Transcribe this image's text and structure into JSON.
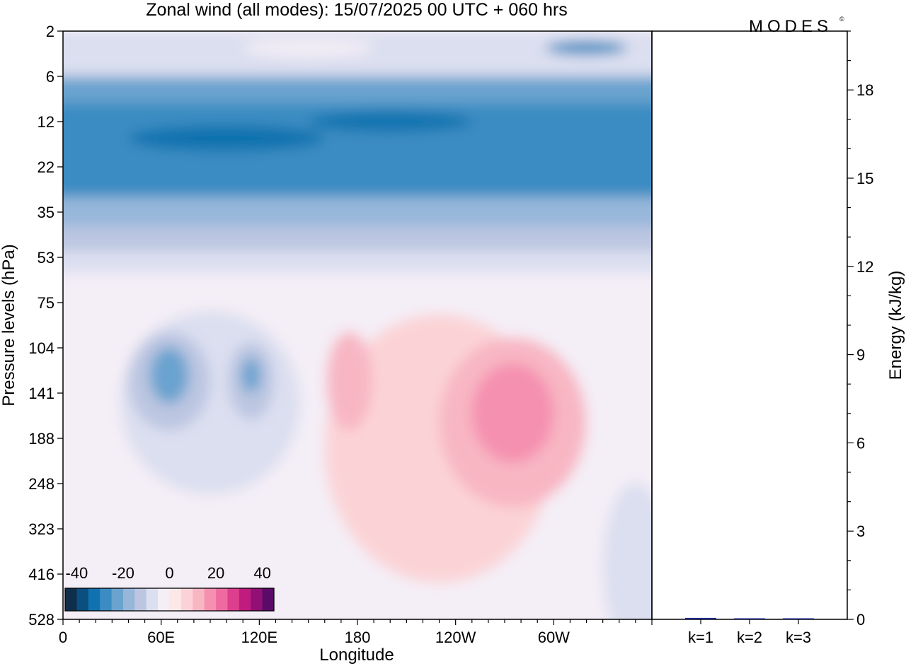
{
  "title": "Zonal wind (all modes):  15/07/2025  00 UTC  + 060 hrs",
  "logo_text": "MODES",
  "logo_mark": "©",
  "chart_data": [
    {
      "type": "heatmap",
      "variable": "Zonal wind",
      "xlabel": "Longitude",
      "ylabel": "Pressure levels (hPa)",
      "x_ticks": [
        "0",
        "60E",
        "120E",
        "180",
        "120W",
        "60W"
      ],
      "x_tick_degrees": [
        0,
        60,
        120,
        180,
        240,
        300
      ],
      "x_range_degrees": [
        0,
        360
      ],
      "y_levels": [
        2,
        6,
        12,
        22,
        35,
        53,
        75,
        104,
        141,
        188,
        248,
        323,
        416,
        528
      ],
      "y_labels": [
        "2",
        "6",
        "12",
        "22",
        "35",
        "53",
        "75",
        "104",
        "141",
        "188",
        "248",
        "323",
        "416",
        "528"
      ],
      "colorbar": {
        "tick_labels": [
          "-40",
          "-20",
          "0",
          "20",
          "40"
        ],
        "tick_values": [
          -40,
          -20,
          0,
          20,
          40
        ],
        "range": [
          -45,
          45
        ],
        "step": 5,
        "colors": [
          "#0f2e4a",
          "#0b4e80",
          "#1072ae",
          "#3b8cc2",
          "#6ba3cf",
          "#97b7da",
          "#bcc6e1",
          "#dcdff0",
          "#f4eef6",
          "#fde8e8",
          "#fbd3d6",
          "#f8b6c3",
          "#f590b0",
          "#ee6aa0",
          "#dd3e8d",
          "#c01c7e",
          "#921076",
          "#5c0a6a"
        ]
      },
      "features": [
        {
          "label": "stratospheric easterly band",
          "levels_hPa": [
            2,
            50
          ],
          "value_min": -35,
          "value_max": -5
        },
        {
          "label": "easterly jet core",
          "lon_deg": 65,
          "level_hPa": 130,
          "value": -30
        },
        {
          "label": "easterly core",
          "lon_deg": 115,
          "level_hPa": 130,
          "value": -25
        },
        {
          "label": "westerly jet",
          "lon_deg": 275,
          "level_hPa": 170,
          "value": 20
        },
        {
          "label": "westerly core",
          "lon_deg": 175,
          "level_hPa": 130,
          "value": 15
        }
      ]
    },
    {
      "type": "bar",
      "ylabel": "Energy (kJ/kg)",
      "categories": [
        "k=1",
        "k=2",
        "k=3"
      ],
      "values": [
        0.05,
        0.02,
        0.015
      ],
      "ylim": [
        0,
        20
      ],
      "y_ticks": [
        0,
        3,
        6,
        9,
        12,
        15,
        18
      ],
      "y_tick_labels": [
        "0",
        "3",
        "6",
        "9",
        "12",
        "15",
        "18"
      ],
      "bar_color": "#1a2a8a"
    }
  ]
}
